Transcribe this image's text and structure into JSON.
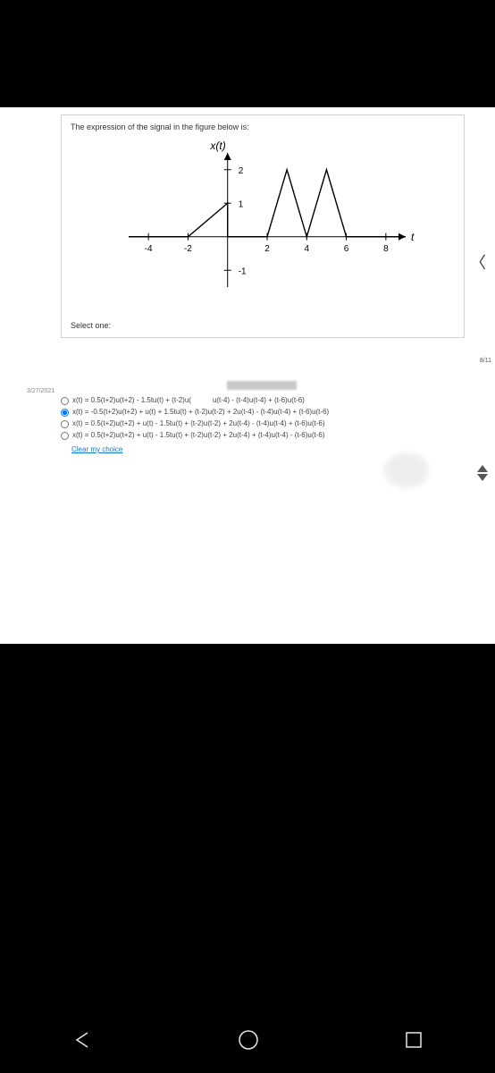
{
  "question": {
    "prompt": "The expression of the signal in the figure below is:",
    "chart": {
      "type": "line-signal",
      "x_axis_label": "t",
      "y_axis_label": "x(t)",
      "xlim": [
        -5,
        9
      ],
      "ylim": [
        -1.5,
        2.5
      ],
      "xticks": [
        -4,
        -2,
        2,
        4,
        6,
        8
      ],
      "yticks": [
        -1,
        1,
        2
      ],
      "axis_color": "#000000",
      "tick_fontsize": 10,
      "label_fontsize": 12,
      "line_color": "#000000",
      "line_width": 1.4,
      "background": "#ffffff",
      "segments": [
        {
          "from": [
            -5,
            0
          ],
          "to": [
            -2,
            0
          ]
        },
        {
          "from": [
            -2,
            0
          ],
          "to": [
            0,
            1
          ]
        },
        {
          "from": [
            0,
            1
          ],
          "to": [
            0,
            0
          ]
        },
        {
          "from": [
            0,
            0
          ],
          "to": [
            2,
            0
          ]
        },
        {
          "from": [
            2,
            0
          ],
          "to": [
            3,
            2
          ]
        },
        {
          "from": [
            3,
            2
          ],
          "to": [
            4,
            0
          ]
        },
        {
          "from": [
            4,
            0
          ],
          "to": [
            5,
            2
          ]
        },
        {
          "from": [
            5,
            2
          ],
          "to": [
            6,
            0
          ]
        },
        {
          "from": [
            6,
            0
          ],
          "to": [
            9,
            0
          ]
        }
      ]
    },
    "select_label": "Select one:",
    "page_progress": "8/11"
  },
  "date": "3/27/2021",
  "answers": {
    "options": [
      {
        "text": "x(t) = 0.5(t+2)u(t+2) - 1.5tu(t) + (t-2)u(",
        "extra": "u(t-4) - (t-4)u(t-4) + (t-6)u(t-6)",
        "selected": false
      },
      {
        "text": "x(t) = -0.5(t+2)u(t+2) + u(t) + 1.5tu(t) + (t-2)u(t-2) + 2u(t-4) - (t-4)u(t-4) + (t-6)u(t-6)",
        "extra": "",
        "selected": true
      },
      {
        "text": "x(t) = 0.5(t+2)u(t+2) + u(t) - 1.5tu(t) + (t-2)u(t-2) + 2u(t-4) - (t-4)u(t-4) + (t-6)u(t-6)",
        "extra": "",
        "selected": false
      },
      {
        "text": "x(t) = 0.5(t+2)u(t+2) + u(t) - 1.5tu(t) + (t-2)u(t-2) + 2u(t-4) + (t-4)u(t-4) - (t-6)u(t-6)",
        "extra": "",
        "selected": false
      }
    ],
    "clear_label": "Clear my choice"
  }
}
